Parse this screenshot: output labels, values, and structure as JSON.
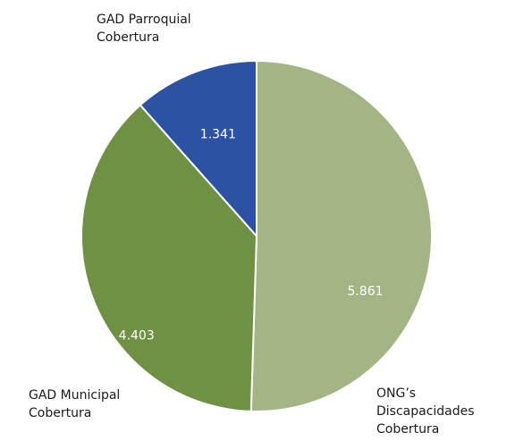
{
  "chart_data": {
    "type": "pie",
    "categories": [
      "ONG’s Discapacidades Cobertura",
      "GAD Municipal Cobertura",
      "GAD Parroquial Cobertura"
    ],
    "values": [
      5861,
      4403,
      1341
    ],
    "value_labels": [
      "5.861",
      "4.403",
      "1.341"
    ],
    "colors": [
      "#a3b584",
      "#6e9144",
      "#2b52a3"
    ]
  }
}
